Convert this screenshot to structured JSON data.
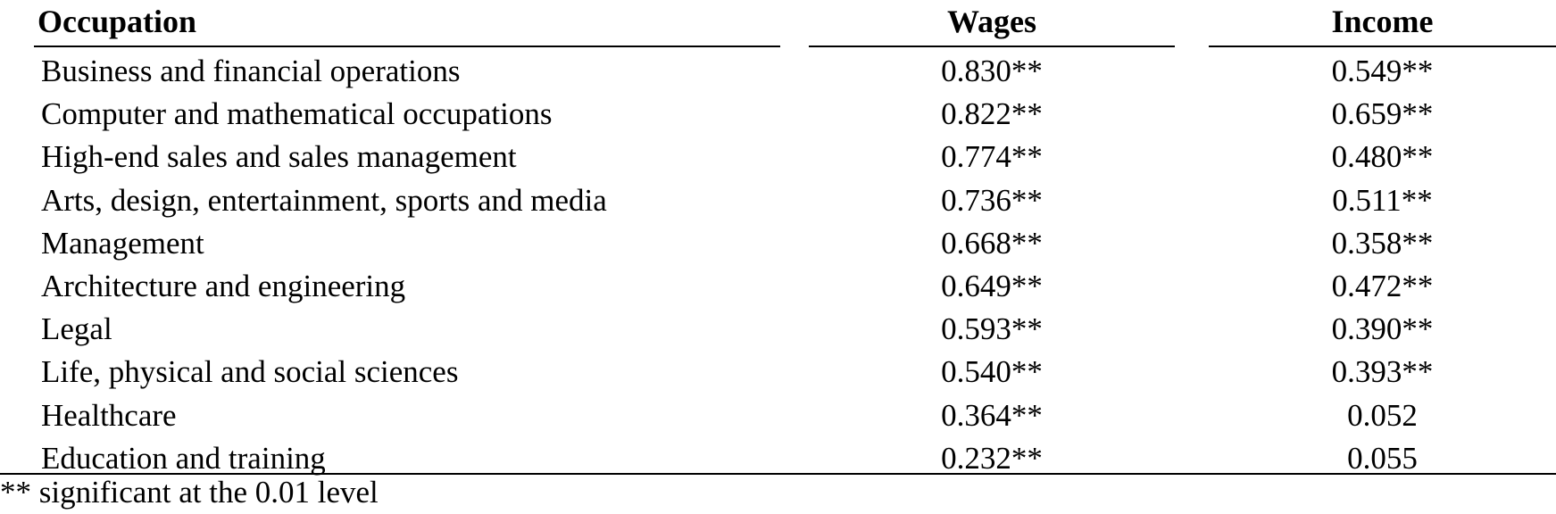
{
  "table": {
    "columns": [
      "Occupation",
      "Wages",
      "Income"
    ],
    "rows": [
      [
        "Business and financial  operations",
        "0.830**",
        "0.549**"
      ],
      [
        "Computer and mathematical occupations",
        "0.822**",
        "0.659**"
      ],
      [
        "High-end sales and sales management",
        "0.774**",
        "0.480**"
      ],
      [
        "Arts, design, entertainment, sports and media",
        "0.736**",
        "0.511**"
      ],
      [
        "Management",
        "0.668**",
        "0.358**"
      ],
      [
        "Architecture and engineering",
        "0.649**",
        "0.472**"
      ],
      [
        "Legal",
        "0.593**",
        "0.390**"
      ],
      [
        "Life, physical and social sciences",
        "0.540**",
        "0.393**"
      ],
      [
        "Healthcare",
        "0.364**",
        "0.052"
      ],
      [
        "Education and training",
        "0.232**",
        "0.055"
      ]
    ],
    "footnote": "** significant at the 0.01 level"
  }
}
